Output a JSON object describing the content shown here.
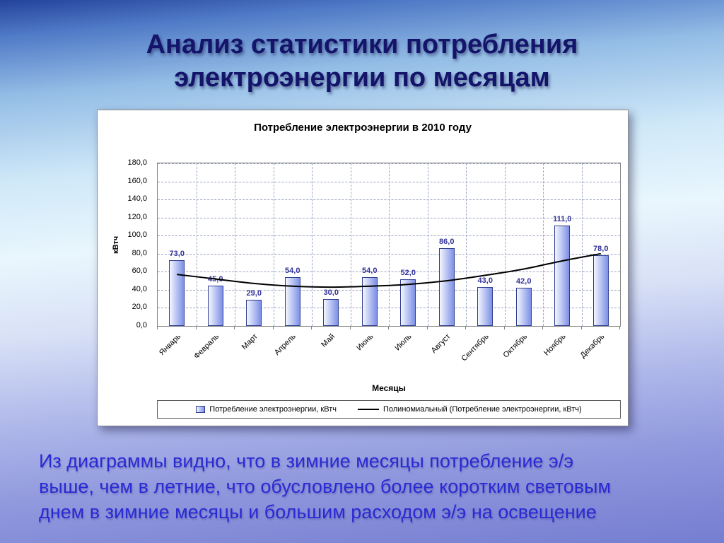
{
  "title": {
    "lines": [
      "Анализ статистики потребления",
      "электроэнергии по месяцам"
    ]
  },
  "chart_data": {
    "type": "bar",
    "title": "Потребление электроэнергии в 2010 году",
    "categories": [
      "Январь",
      "Февраль",
      "Март",
      "Апрель",
      "Май",
      "Июнь",
      "Июль",
      "Август",
      "Сентябрь",
      "Октябрь",
      "Ноябрь",
      "Декабрь"
    ],
    "series": [
      {
        "name": "Потребление электроэнергии, кВтч",
        "type": "bar",
        "values": [
          73,
          45,
          29,
          54,
          30,
          54,
          52,
          86,
          43,
          42,
          111,
          78
        ]
      },
      {
        "name": "Полиномиальный (Потребление электроэнергии, кВтч)",
        "type": "line",
        "estimated": true,
        "values": [
          57,
          52,
          47,
          44,
          43,
          44,
          46,
          50,
          56,
          63,
          72,
          80
        ]
      }
    ],
    "bar_value_labels": [
      "73,0",
      "45,0",
      "29,0",
      "54,0",
      "30,0",
      "54,0",
      "52,0",
      "86,0",
      "43,0",
      "42,0",
      "111,0",
      "78,0"
    ],
    "ylabel": "кВтч",
    "xlabel": "Месяцы",
    "ylim": [
      0,
      180
    ],
    "ytick_step": 20,
    "yticks": [
      "180,0",
      "160,0",
      "140,0",
      "120,0",
      "100,0",
      "80,0",
      "60,0",
      "40,0",
      "20,0",
      "0,0"
    ],
    "grid": true,
    "legend_position": "bottom"
  },
  "footer": {
    "lines": [
      "Из диаграммы видно, что в зимние месяцы потребление э/э",
      "выше, чем в летние, что обусловлено более коротким световым",
      "днем в зимние месяцы и большим расходом э/э на освещение"
    ]
  },
  "colors": {
    "bar_start": "#f4f7ff",
    "bar_end": "#7d8fe6",
    "bar_border": "#2f3d8f",
    "label_color": "#333399",
    "trend_color": "#000000",
    "title_color": "#14146b",
    "footer_color": "#2a2ad2"
  }
}
